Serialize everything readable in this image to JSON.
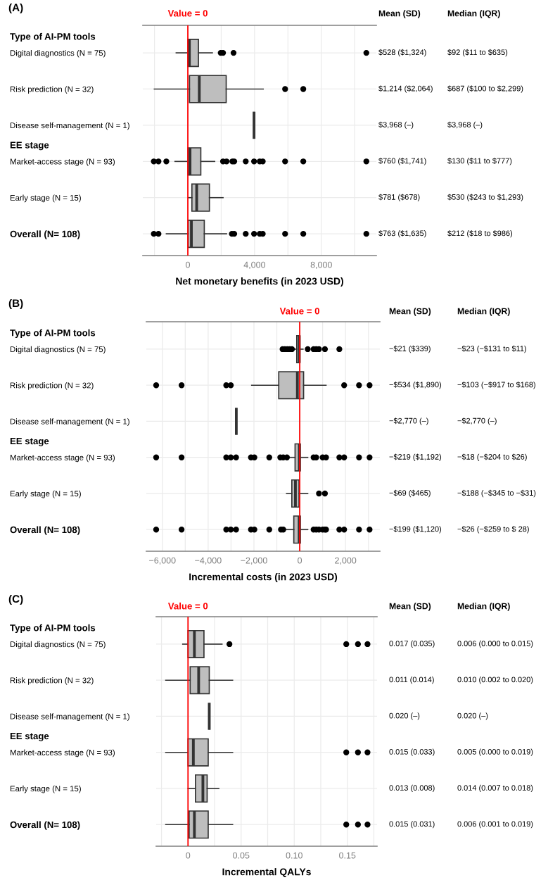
{
  "chart_data": [
    {
      "type": "box",
      "orientation": "horizontal",
      "title": "(A)",
      "xlabel": "Net monetary benefits (in 2023 USD)",
      "categories": [
        "Digital diagnostics (N = 75)",
        "Risk prediction (N = 32)",
        "Disease self-management (N = 1)",
        "Market-access stage (N = 93)",
        "Early stage (N = 15)",
        "Overall (N= 108)"
      ],
      "color": "#bebebe",
      "boxes": [
        {
          "low": -700,
          "q1": 11,
          "median": 92,
          "q3": 635,
          "high": 1470,
          "outliers": [
            1970,
            2110,
            2740,
            10700
          ]
        },
        {
          "low": -2010,
          "q1": 100,
          "median": 687,
          "q3": 2299,
          "high": 4520,
          "outliers": [
            5830,
            6920
          ]
        },
        {
          "low": 3968,
          "q1": 3968,
          "median": 3968,
          "q3": 3968,
          "high": 3968
        },
        {
          "low": -770,
          "q1": 11,
          "median": 130,
          "q3": 777,
          "high": 1610,
          "outliers": [
            -2040,
            -1760,
            -1290,
            2110,
            2320,
            2670,
            2780,
            3470,
            3970,
            4310,
            4490,
            5830,
            6920,
            10700
          ]
        },
        {
          "low": 30,
          "q1": 243,
          "median": 530,
          "q3": 1293,
          "high": 2110
        },
        {
          "low": -1290,
          "q1": 18,
          "median": 212,
          "q3": 986,
          "high": 2320,
          "outliers": [
            -2040,
            -1760,
            2640,
            2780,
            3470,
            3970,
            4310,
            4490,
            5830,
            6920,
            10700
          ]
        }
      ],
      "xlim": [
        -2700,
        11300
      ],
      "xticks": [
        {
          "value": -2000,
          "label": null
        },
        0,
        {
          "value": 2000,
          "label": null
        },
        {
          "value": 4000,
          "label": "4,000"
        },
        {
          "value": 6000,
          "label": null
        },
        {
          "value": 8000,
          "label": "8,000"
        },
        {
          "value": 10000,
          "label": null
        }
      ],
      "grid": true,
      "ref_lines": [
        {
          "axis": "x",
          "value": 0,
          "label": "Value = 0",
          "color": "#ff0000"
        }
      ],
      "annotations": [
        "Type of AI-PM tools",
        "EE stage",
        "Mean (SD)",
        "Median (IQR)",
        "$528 ($1,324)",
        "$92 ($11 to $635)",
        "$1,214 ($2,064)",
        "$687 ($100 to $2,299)",
        "$3,968 (–)",
        "$3,968 (–)",
        "$760 ($1,741)",
        "$130 ($11 to $777)",
        "$781 ($678)",
        "$530 ($243 to $1,293)",
        "$763 ($1,635)",
        "$212 ($18 to $986)"
      ]
    },
    {
      "type": "box",
      "orientation": "horizontal",
      "title": "(B)",
      "xlabel": "Incremental costs (in 2023 USD)",
      "categories": [
        "Digital diagnostics (N = 75)",
        "Risk prediction (N = 32)",
        "Disease self-management (N = 1)",
        "Market-access stage (N = 93)",
        "Early stage (N = 15)",
        "Overall (N= 108)"
      ],
      "color": "#bebebe",
      "boxes": [
        {
          "low": -260,
          "q1": -131,
          "median": -23,
          "q3": 11,
          "high": 144,
          "outliers": [
            -750,
            -650,
            -540,
            -440,
            -340,
            350,
            605,
            720,
            840,
            1100,
            1730
          ]
        },
        {
          "low": -2100,
          "q1": -917,
          "median": -103,
          "q3": 168,
          "high": 1150,
          "outliers": [
            -6270,
            -5160,
            -3210,
            -3010,
            1940,
            2590,
            3050
          ]
        },
        {
          "low": -2770,
          "q1": -2770,
          "median": -2770,
          "q3": -2770,
          "high": -2770
        },
        {
          "low": -440,
          "q1": -204,
          "median": -18,
          "q3": 26,
          "high": 350,
          "outliers": [
            -6270,
            -5160,
            -3210,
            -3010,
            -2780,
            -2130,
            -1980,
            -1330,
            -850,
            -720,
            -560,
            605,
            720,
            1000,
            1150,
            1730,
            1940,
            2590,
            3050
          ]
        },
        {
          "low": -575,
          "q1": -345,
          "median": -188,
          "q3": -31,
          "high": 350,
          "outliers": [
            840,
            1100
          ]
        },
        {
          "low": -595,
          "q1": -259,
          "median": -26,
          "q3": 28,
          "high": 350,
          "outliers": [
            -6270,
            -5160,
            -3210,
            -3010,
            -2780,
            -2130,
            -1980,
            -1330,
            -820,
            -720,
            605,
            720,
            840,
            1000,
            1100,
            1150,
            1730,
            1940,
            2590,
            3050
          ]
        }
      ],
      "xlim": [
        -6700,
        3500
      ],
      "xticks": [
        {
          "value": -6000,
          "label": "−6,000"
        },
        {
          "value": -5000,
          "label": null
        },
        {
          "value": -4000,
          "label": "−4,000"
        },
        {
          "value": -3000,
          "label": null
        },
        {
          "value": -2000,
          "label": "−2,000"
        },
        {
          "value": -1000,
          "label": null
        },
        0,
        {
          "value": 1000,
          "label": null
        },
        {
          "value": 2000,
          "label": "2,000"
        },
        {
          "value": 3000,
          "label": null
        }
      ],
      "grid": true,
      "ref_lines": [
        {
          "axis": "x",
          "value": 0,
          "label": "Value = 0",
          "color": "#ff0000"
        }
      ],
      "annotations": [
        "Type of AI-PM tools",
        "EE stage",
        "Mean (SD)",
        "Median (IQR)",
        "−$21 ($339)",
        "−$23 (−$131 to $11)",
        "−$534 ($1,890)",
        "−$103 (−$917 to $168)",
        "−$2,770 (–)",
        "−$2,770 (–)",
        "−$219 ($1,192)",
        "−$18 (−$204 to $26)",
        "−$69 ($465)",
        "−$188 (−$345 to −$31)",
        "−$199 ($1,120)",
        "−$26 (−$259 to $ 28)"
      ]
    },
    {
      "type": "box",
      "orientation": "horizontal",
      "title": "(C)",
      "xlabel": "Incremental QALYs",
      "categories": [
        "Digital diagnostics (N = 75)",
        "Risk prediction (N = 32)",
        "Disease self-management (N = 1)",
        "Market-access stage (N = 93)",
        "Early stage (N = 15)",
        "Overall (N= 108)"
      ],
      "color": "#bebebe",
      "boxes": [
        {
          "low": -0.005,
          "q1": 0.0,
          "median": 0.006,
          "q3": 0.015,
          "high": 0.032,
          "outliers": [
            0.039,
            0.149,
            0.16,
            0.169
          ]
        },
        {
          "low": -0.021,
          "q1": 0.002,
          "median": 0.01,
          "q3": 0.02,
          "high": 0.042
        },
        {
          "low": 0.02,
          "q1": 0.02,
          "median": 0.02,
          "q3": 0.02,
          "high": 0.02
        },
        {
          "low": -0.021,
          "q1": 0.0,
          "median": 0.005,
          "q3": 0.019,
          "high": 0.042,
          "outliers": [
            0.149,
            0.16,
            0.169
          ]
        },
        {
          "low": 0.0,
          "q1": 0.007,
          "median": 0.014,
          "q3": 0.018,
          "high": 0.029
        },
        {
          "low": -0.021,
          "q1": 0.001,
          "median": 0.006,
          "q3": 0.019,
          "high": 0.042,
          "outliers": [
            0.149,
            0.16,
            0.169
          ]
        }
      ],
      "xlim": [
        -0.03,
        0.178
      ],
      "xticks": [
        {
          "value": -0.025,
          "label": null
        },
        0,
        {
          "value": 0.025,
          "label": null
        },
        0.05,
        {
          "value": 0.075,
          "label": null
        },
        {
          "value": 0.1,
          "label": "0.10"
        },
        {
          "value": 0.125,
          "label": null
        },
        0.15,
        {
          "value": 0.175,
          "label": null
        }
      ],
      "grid": true,
      "ref_lines": [
        {
          "axis": "x",
          "value": 0,
          "label": "Value = 0",
          "color": "#ff0000"
        }
      ],
      "annotations": [
        "Type of AI-PM tools",
        "EE stage",
        "Mean (SD)",
        "Median (IQR)",
        "0.017 (0.035)",
        "0.006 (0.000 to 0.015)",
        "0.011 (0.014)",
        "0.010 (0.002 to 0.020)",
        "0.020 (–)",
        "0.020 (–)",
        "0.015 (0.033)",
        "0.005 (0.000 to 0.019)",
        "0.013 (0.008)",
        "0.014 (0.007 to 0.018)",
        "0.015 (0.031)",
        "0.006 (0.001 to 0.019)"
      ]
    }
  ]
}
